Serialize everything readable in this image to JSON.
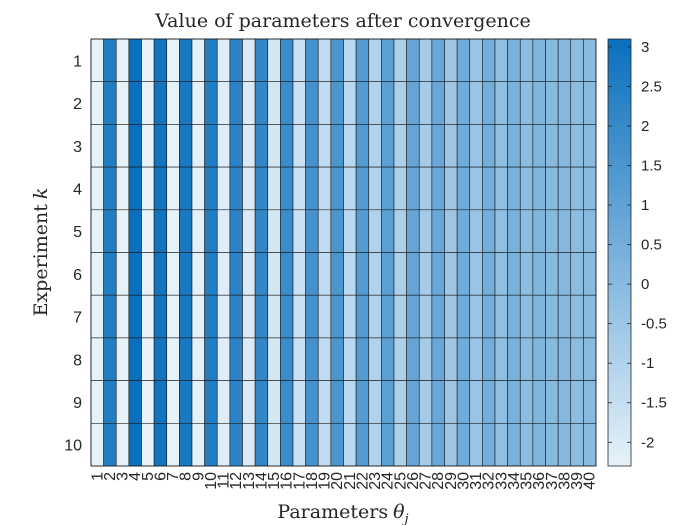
{
  "chart_data": {
    "type": "heatmap",
    "title": "Value of parameters after convergence",
    "xlabel": "Parameters",
    "xlabel_symbol": "θ",
    "xlabel_subscript": "j",
    "ylabel": "Experiment",
    "ylabel_symbol": "k",
    "x_categories": [
      "1",
      "2",
      "3",
      "4",
      "5",
      "6",
      "7",
      "8",
      "9",
      "10",
      "11",
      "12",
      "13",
      "14",
      "15",
      "16",
      "17",
      "18",
      "19",
      "20",
      "21",
      "22",
      "23",
      "24",
      "25",
      "26",
      "27",
      "28",
      "29",
      "30",
      "31",
      "32",
      "33",
      "34",
      "35",
      "36",
      "37",
      "38",
      "39",
      "40"
    ],
    "y_categories": [
      "1",
      "2",
      "3",
      "4",
      "5",
      "6",
      "7",
      "8",
      "9",
      "10"
    ],
    "column_values": [
      -2.3,
      2.5,
      -2.3,
      3.1,
      -2.3,
      2.9,
      -2.3,
      2.7,
      -2.2,
      2.5,
      -2.1,
      2.3,
      -2.0,
      2.1,
      -1.8,
      1.9,
      -1.6,
      1.7,
      -1.4,
      1.5,
      -1.2,
      1.3,
      -1.0,
      1.1,
      -0.9,
      0.9,
      -0.7,
      0.8,
      -0.5,
      0.6,
      -0.4,
      0.5,
      -0.2,
      0.4,
      -0.1,
      0.2,
      0.0,
      0.1,
      -0.1,
      0.0
    ],
    "values_note_rows": "identical across all 10 experiments",
    "colorbar": {
      "range": [
        -2.3,
        3.1
      ],
      "ticks": [
        "3",
        "2.5",
        "2",
        "1.5",
        "1",
        "0.5",
        "0",
        "-0.5",
        "-1",
        "-1.5",
        "-2"
      ],
      "tick_values": [
        3,
        2.5,
        2,
        1.5,
        1,
        0.5,
        0,
        -0.5,
        -1,
        -1.5,
        -2
      ],
      "color_low": "#e6f2fa",
      "color_high": "#0a6fbd"
    },
    "grid": true
  }
}
